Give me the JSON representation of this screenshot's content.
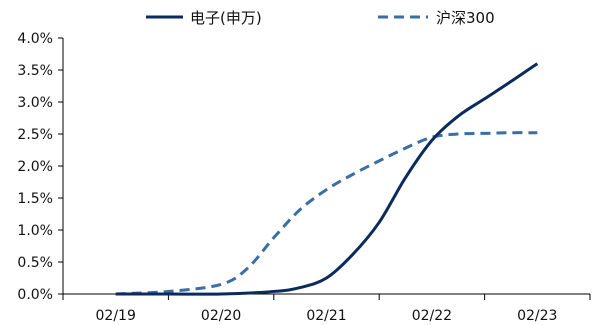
{
  "chart_data": {
    "type": "line",
    "categories": [
      "02/19",
      "02/20",
      "02/21",
      "02/22",
      "02/23"
    ],
    "y_ticks": [
      "0.0%",
      "0.5%",
      "1.0%",
      "1.5%",
      "2.0%",
      "2.5%",
      "3.0%",
      "3.5%",
      "4.0%"
    ],
    "ylim": [
      0,
      4.0
    ],
    "y_unit": "%",
    "grid": false,
    "legend_position": "top",
    "series": [
      {
        "name": "电子(申万)",
        "color": "#0b2b5c",
        "style": "solid",
        "x": [
          0,
          0.5,
          1.0,
          1.5,
          1.75,
          2.0,
          2.25,
          2.5,
          2.75,
          3.0,
          3.25,
          3.5,
          3.75,
          4.0
        ],
        "y": [
          0.0,
          0.0,
          0.0,
          0.04,
          0.1,
          0.25,
          0.62,
          1.12,
          1.82,
          2.4,
          2.78,
          3.05,
          3.32,
          3.6
        ]
      },
      {
        "name": "沪深300",
        "color": "#3a6ea5",
        "style": "dashed",
        "x": [
          0,
          0.5,
          1.0,
          1.25,
          1.5,
          1.75,
          2.0,
          2.25,
          2.5,
          2.75,
          3.0,
          3.25,
          3.5,
          3.75,
          4.0
        ],
        "y": [
          0.0,
          0.04,
          0.15,
          0.4,
          0.88,
          1.32,
          1.63,
          1.87,
          2.08,
          2.28,
          2.45,
          2.5,
          2.51,
          2.52,
          2.52
        ]
      }
    ]
  }
}
